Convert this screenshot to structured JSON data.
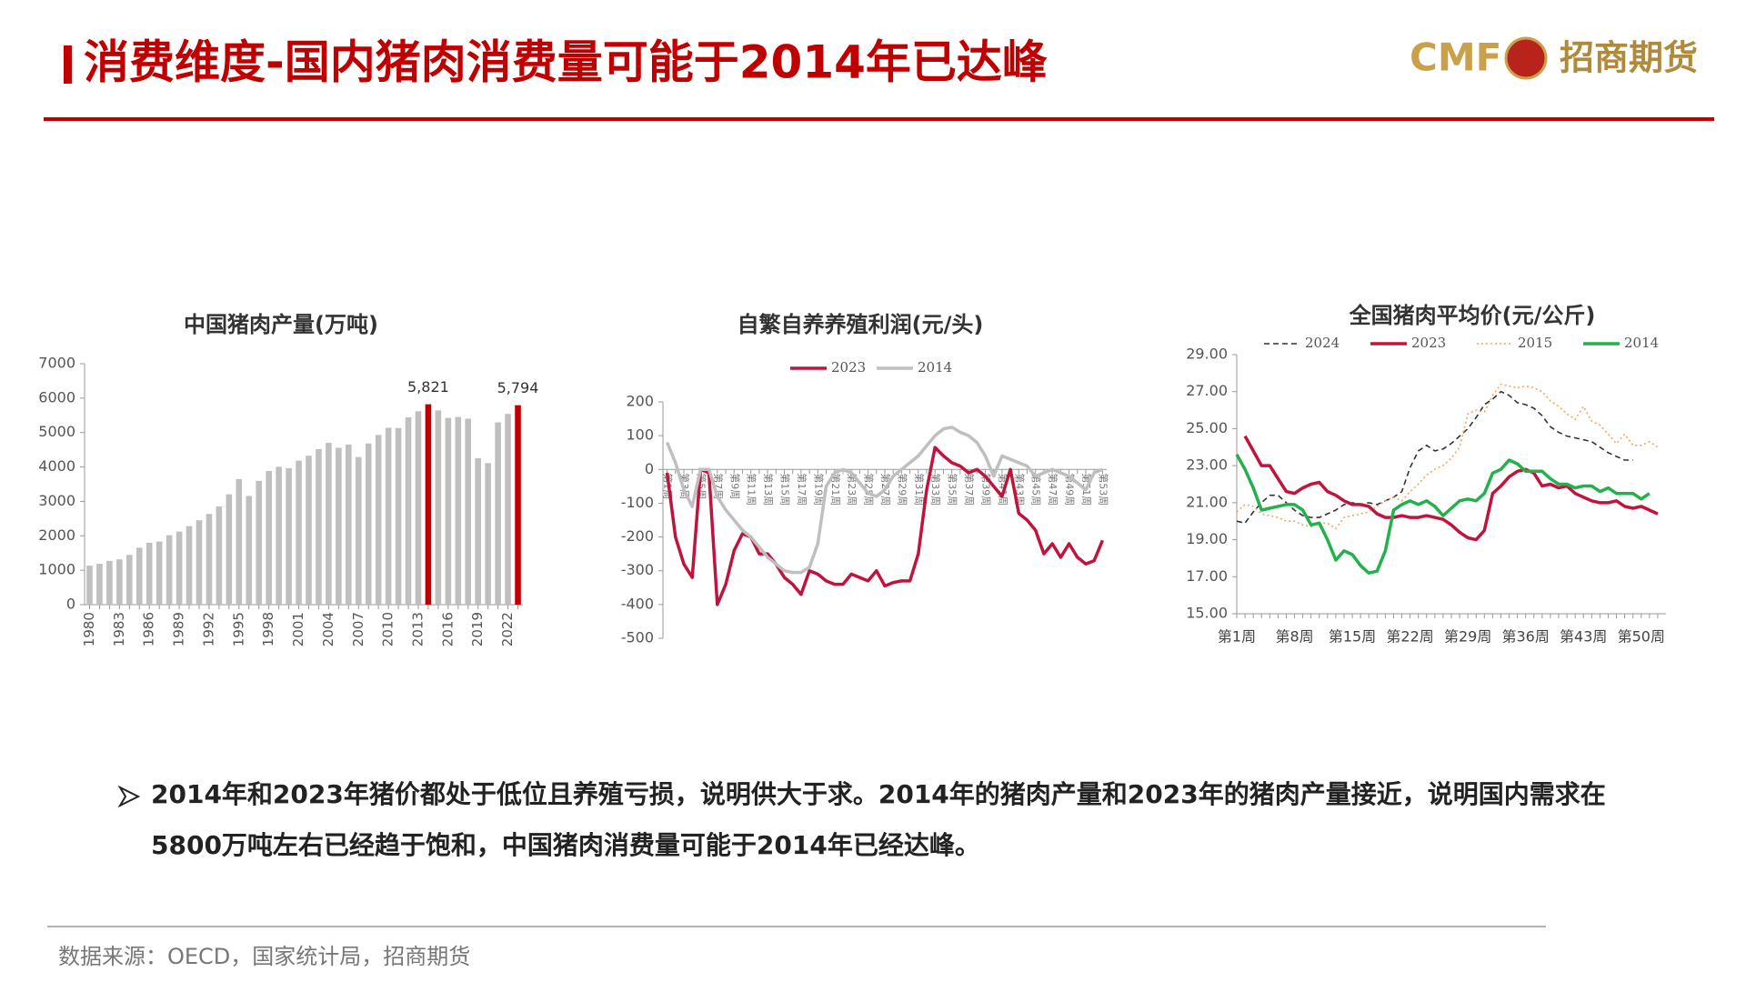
{
  "header": {
    "title": "消费维度-国内猪肉消费量可能于2014年已达峰",
    "logo_text": "CMF",
    "company": "招商期货"
  },
  "chart_data": [
    {
      "type": "bar",
      "title": "中国猪肉产量(万吨)",
      "categories": [
        "1980",
        null,
        null,
        "1983",
        null,
        null,
        "1986",
        null,
        null,
        "1989",
        null,
        null,
        "1992",
        null,
        null,
        "1995",
        null,
        null,
        "1998",
        null,
        null,
        "2001",
        null,
        null,
        "2004",
        null,
        null,
        "2007",
        null,
        null,
        "2010",
        null,
        null,
        "2013",
        null,
        null,
        "2016",
        null,
        null,
        "2019",
        null,
        null,
        "2022",
        null
      ],
      "values": [
        1134,
        1188,
        1272,
        1316,
        1445,
        1655,
        1796,
        1835,
        2018,
        2123,
        2281,
        2452,
        2635,
        2854,
        3205,
        3648,
        3158,
        3596,
        3884,
        4006,
        3966,
        4184,
        4327,
        4518,
        4701,
        4555,
        4650,
        4288,
        4682,
        4932,
        5138,
        5131,
        5443,
        5619,
        5821,
        5645,
        5425,
        5452,
        5404,
        4255,
        4113,
        5296,
        5541,
        5794
      ],
      "value_labels": [
        null,
        null,
        null,
        null,
        null,
        null,
        null,
        null,
        null,
        null,
        null,
        null,
        null,
        null,
        null,
        null,
        null,
        null,
        null,
        null,
        null,
        null,
        null,
        null,
        null,
        null,
        null,
        null,
        null,
        null,
        null,
        null,
        null,
        null,
        "5,821",
        null,
        null,
        null,
        null,
        null,
        null,
        null,
        null,
        "5,794"
      ],
      "colors": [
        "#bfbfbf",
        "#bfbfbf",
        "#bfbfbf",
        "#bfbfbf",
        "#bfbfbf",
        "#bfbfbf",
        "#bfbfbf",
        "#bfbfbf",
        "#bfbfbf",
        "#bfbfbf",
        "#bfbfbf",
        "#bfbfbf",
        "#bfbfbf",
        "#bfbfbf",
        "#bfbfbf",
        "#bfbfbf",
        "#bfbfbf",
        "#bfbfbf",
        "#bfbfbf",
        "#bfbfbf",
        "#bfbfbf",
        "#bfbfbf",
        "#bfbfbf",
        "#bfbfbf",
        "#bfbfbf",
        "#bfbfbf",
        "#bfbfbf",
        "#bfbfbf",
        "#bfbfbf",
        "#bfbfbf",
        "#bfbfbf",
        "#bfbfbf",
        "#bfbfbf",
        "#bfbfbf",
        "#c00000",
        "#bfbfbf",
        "#bfbfbf",
        "#bfbfbf",
        "#bfbfbf",
        "#bfbfbf",
        "#bfbfbf",
        "#bfbfbf",
        "#bfbfbf",
        "#c00000"
      ],
      "ylim": [
        0,
        7000
      ],
      "yticks": [
        0,
        1000,
        2000,
        3000,
        4000,
        5000,
        6000,
        7000
      ]
    },
    {
      "type": "line",
      "title": "自繁自养养殖利润(元/头)",
      "categories": [
        "第1周",
        null,
        "第3周",
        null,
        "第5周",
        null,
        "第7周",
        null,
        "第9周",
        null,
        "第11周",
        null,
        "第13周",
        null,
        "第15周",
        null,
        "第17周",
        null,
        "第19周",
        null,
        "第21周",
        null,
        "第23周",
        null,
        "第25周",
        null,
        "第27周",
        null,
        "第29周",
        null,
        "第31周",
        null,
        "第33周",
        null,
        "第35周",
        null,
        "第37周",
        null,
        "第39周",
        null,
        "第41周",
        null,
        "第43周",
        null,
        "第45周",
        null,
        "第47周",
        null,
        "第49周",
        null,
        "第51周",
        null,
        "第53周"
      ],
      "series": [
        {
          "name": "2023",
          "color": "#c0143c",
          "values": [
            -10,
            -200,
            -280,
            -320,
            0,
            -10,
            -400,
            -340,
            -240,
            -190,
            -200,
            -250,
            -250,
            -280,
            -320,
            -340,
            -370,
            -300,
            -310,
            -330,
            -340,
            -340,
            -310,
            -320,
            -330,
            -300,
            -345,
            -335,
            -330,
            -330,
            -250,
            -60,
            65,
            40,
            20,
            10,
            -10,
            0,
            -20,
            -50,
            -80,
            0,
            -130,
            -150,
            -180,
            -250,
            -220,
            -260,
            -220,
            -260,
            -280,
            -270,
            -210
          ]
        },
        {
          "name": "2014",
          "color": "#bfbfbf",
          "values": [
            80,
            20,
            -60,
            -110,
            0,
            0,
            -80,
            -120,
            -150,
            -180,
            -200,
            -230,
            -260,
            -280,
            -300,
            -305,
            -305,
            -290,
            -220,
            -50,
            -10,
            0,
            -10,
            -40,
            -70,
            -80,
            -60,
            -20,
            0,
            20,
            40,
            70,
            100,
            120,
            125,
            110,
            100,
            80,
            40,
            -20,
            40,
            30,
            20,
            10,
            -20,
            -10,
            0,
            -10,
            -20,
            -40,
            -60,
            -10,
            0
          ]
        }
      ],
      "ylim": [
        -500,
        200
      ],
      "yticks": [
        -500,
        -400,
        -300,
        -200,
        -100,
        0,
        100,
        200
      ]
    },
    {
      "type": "line",
      "title": "全国猪肉平均价(元/公斤)",
      "categories": [
        "第1周",
        null,
        null,
        null,
        null,
        null,
        null,
        "第8周",
        null,
        null,
        null,
        null,
        null,
        null,
        "第15周",
        null,
        null,
        null,
        null,
        null,
        null,
        "第22周",
        null,
        null,
        null,
        null,
        null,
        null,
        "第29周",
        null,
        null,
        null,
        null,
        null,
        null,
        "第36周",
        null,
        null,
        null,
        null,
        null,
        null,
        "第43周",
        null,
        null,
        null,
        null,
        null,
        null,
        "第50周",
        null,
        null
      ],
      "series": [
        {
          "name": "2024",
          "color": "#333333",
          "line_style": "dashed",
          "values": [
            20.0,
            19.9,
            20.5,
            21.0,
            21.4,
            21.4,
            21.0,
            20.6,
            20.3,
            20.2,
            20.2,
            20.4,
            20.6,
            20.9,
            21.0,
            20.9,
            21.0,
            20.9,
            21.1,
            21.3,
            21.6,
            22.9,
            23.8,
            24.1,
            23.8,
            23.9,
            24.2,
            24.6,
            25.0,
            25.6,
            26.3,
            26.6,
            27.0,
            26.8,
            26.4,
            26.3,
            26.1,
            25.7,
            25.1,
            24.8,
            24.6,
            24.5,
            24.4,
            24.3,
            24.0,
            23.7,
            23.5,
            23.3,
            23.3,
            null,
            null,
            null
          ]
        },
        {
          "name": "2023",
          "color": "#c0143c",
          "values": [
            null,
            24.6,
            23.8,
            23.0,
            23.0,
            22.3,
            21.6,
            21.5,
            21.8,
            22.0,
            22.1,
            21.6,
            21.4,
            21.1,
            20.9,
            20.9,
            20.8,
            20.4,
            20.2,
            20.2,
            20.3,
            20.2,
            20.2,
            20.3,
            20.2,
            20.1,
            19.8,
            19.4,
            19.1,
            19.0,
            19.5,
            21.5,
            21.9,
            22.4,
            22.7,
            22.8,
            22.6,
            21.9,
            22.0,
            21.8,
            21.9,
            21.5,
            21.3,
            21.1,
            21.0,
            21.0,
            21.1,
            20.8,
            20.7,
            20.8,
            20.6,
            20.4
          ]
        },
        {
          "name": "2015",
          "color": "#f4a460",
          "line_style": "dotted",
          "values": [
            20.5,
            20.9,
            20.8,
            20.4,
            20.3,
            20.2,
            20.0,
            20.0,
            19.8,
            19.7,
            19.9,
            19.9,
            19.6,
            20.2,
            20.3,
            20.4,
            20.5,
            20.8,
            21.1,
            21.3,
            21.1,
            21.6,
            22.0,
            22.5,
            22.8,
            23.0,
            23.4,
            24.0,
            25.8,
            26.0,
            25.9,
            26.8,
            27.4,
            27.3,
            27.2,
            27.3,
            27.2,
            27.0,
            26.5,
            26.2,
            25.8,
            25.5,
            26.2,
            25.4,
            25.2,
            24.7,
            24.2,
            24.7,
            24.1,
            24.1,
            24.3,
            24.0
          ]
        },
        {
          "name": "2014",
          "color": "#22b14c",
          "values": [
            23.6,
            22.8,
            21.8,
            20.6,
            20.7,
            20.8,
            20.9,
            20.9,
            20.6,
            19.8,
            19.9,
            19.0,
            17.9,
            18.4,
            18.2,
            17.6,
            17.2,
            17.3,
            18.4,
            20.6,
            20.9,
            21.1,
            20.9,
            21.1,
            20.8,
            20.3,
            20.7,
            21.1,
            21.2,
            21.1,
            21.5,
            22.6,
            22.8,
            23.3,
            23.1,
            22.7,
            22.7,
            22.7,
            22.3,
            22.0,
            22.0,
            21.8,
            21.9,
            21.9,
            21.6,
            21.8,
            21.5,
            21.5,
            21.5,
            21.2,
            21.5,
            null
          ]
        }
      ],
      "ylim": [
        15,
        29
      ],
      "yticks": [
        {
          "value": 15,
          "label": "15.00"
        },
        {
          "value": 17,
          "label": "17.00"
        },
        {
          "value": 19,
          "label": "19.00"
        },
        {
          "value": 21,
          "label": "21.00"
        },
        {
          "value": 23,
          "label": "23.00"
        },
        {
          "value": 25,
          "label": "25.00"
        },
        {
          "value": 27,
          "label": "27.00"
        },
        {
          "value": 29,
          "label": "29.00"
        }
      ]
    }
  ],
  "bullet": "2014年和2023年猪价都处于低位且养殖亏损，说明供大于求。2014年的猪肉产量和2023年的猪肉产量接近，说明国内需求在5800万吨左右已经趋于饱和，中国猪肉消费量可能于2014年已经达峰。",
  "source": "数据来源：OECD，国家统计局，招商期货"
}
